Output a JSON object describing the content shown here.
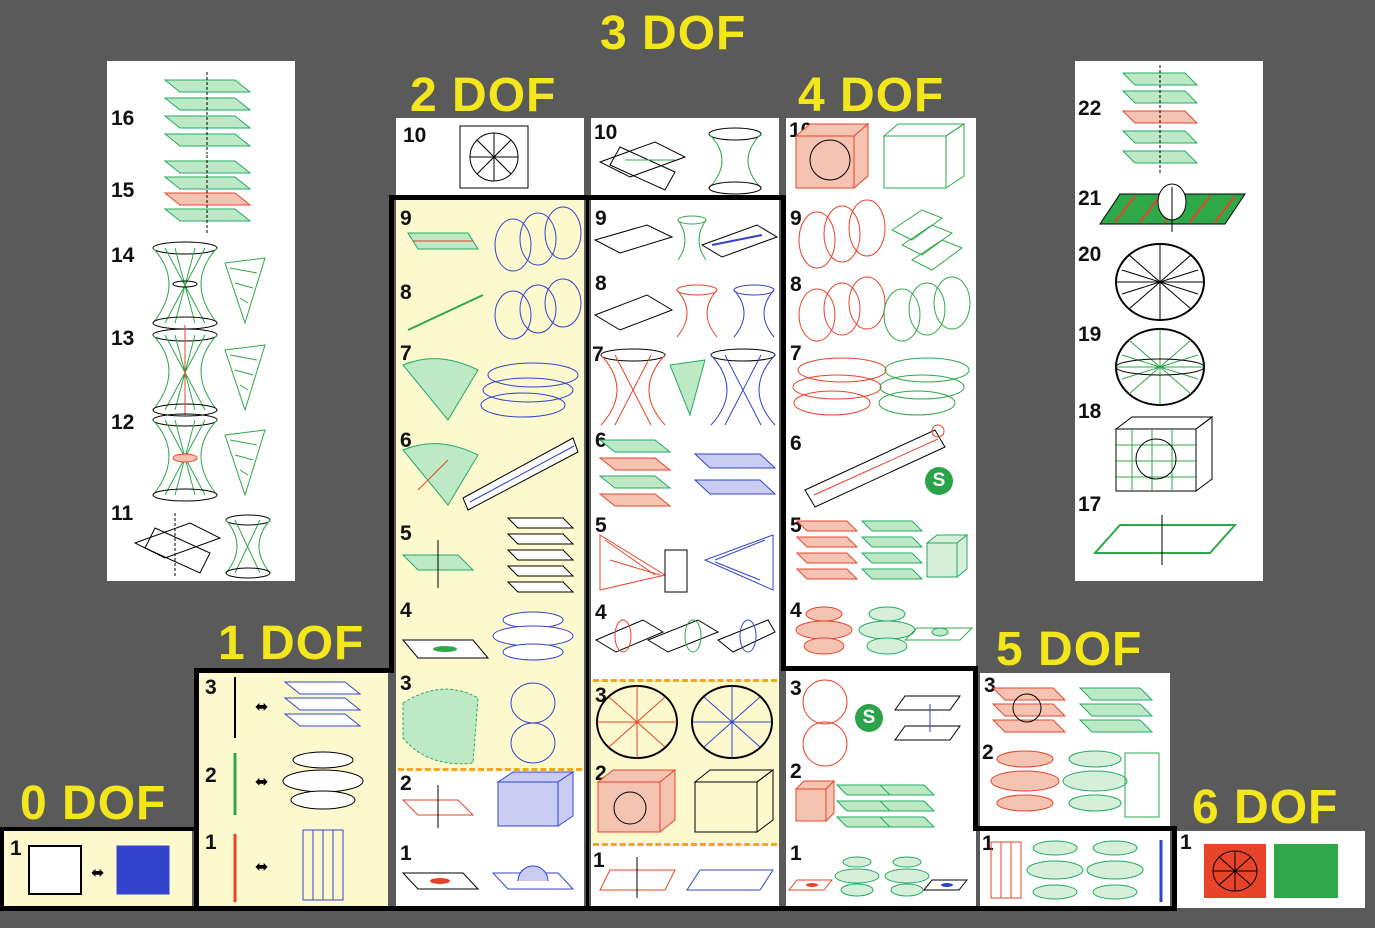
{
  "labels": {
    "dof0": "0 DOF",
    "dof1": "1 DOF",
    "dof2": "2 DOF",
    "dof3": "3 DOF",
    "dof4": "4 DOF",
    "dof5": "5 DOF",
    "dof6": "6 DOF"
  },
  "badge": "S",
  "colors": {
    "background": "#5a5a5a",
    "label": "#f3e61a",
    "green": "#2fa84a",
    "red": "#e8442a",
    "blue": "#3344cc",
    "highlight": "#fdf9cf",
    "divider": "#f0a81e"
  },
  "dof3_left": [
    "16",
    "15",
    "14",
    "13",
    "12",
    "11"
  ],
  "dof3_right": [
    "22",
    "21",
    "20",
    "19",
    "18",
    "17"
  ],
  "dof2_a": [
    "10",
    "9",
    "8",
    "7",
    "6",
    "5",
    "4",
    "3",
    "2",
    "1"
  ],
  "dof2_b": [
    "10",
    "9",
    "8",
    "7",
    "6",
    "5",
    "4",
    "3",
    "2",
    "1"
  ],
  "dof4": [
    "10",
    "9",
    "8",
    "7",
    "6",
    "5",
    "4",
    "3",
    "2",
    "1"
  ],
  "dof1": [
    "3",
    "2",
    "1"
  ],
  "dof5": [
    "3",
    "2",
    "1"
  ],
  "dof0": [
    "1"
  ],
  "dof6": [
    "1"
  ]
}
